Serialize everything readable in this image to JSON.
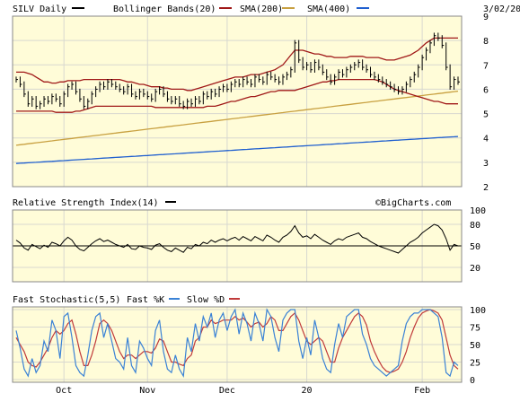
{
  "chart_data": {
    "type": "line",
    "ticker_label": "SILV Daily",
    "date": "3/02/20",
    "watermark": "©BigCharts.com",
    "colors": {
      "background": "#ffffff",
      "panel_bg": "#fffcd8",
      "frame": "#888888",
      "grid": "#d8d8d0",
      "price": "#000000",
      "bollinger": "#a01818",
      "sma200": "#c8a040",
      "sma400": "#1f5fcf",
      "rsi": "#000000",
      "fast_k": "#3a82d6",
      "slow_d": "#c03a3a"
    },
    "legend": [
      {
        "label": "SILV Daily",
        "color": "#000000"
      },
      {
        "label": "Bollinger Bands(20)",
        "color": "#a01818"
      },
      {
        "label": "SMA(200)",
        "color": "#c8a040"
      },
      {
        "label": "SMA(400)",
        "color": "#1f5fcf"
      }
    ],
    "x_labels": [
      "Oct",
      "Nov",
      "Dec",
      "20",
      "Feb"
    ],
    "x_label_positions": [
      12,
      33,
      53,
      73,
      102
    ],
    "price_panel": {
      "y_ticks": [
        "9",
        "8",
        "7",
        "6",
        "5",
        "4",
        "3",
        "2"
      ],
      "ylim": [
        2,
        9
      ],
      "price": [
        6.4,
        6.2,
        5.8,
        5.4,
        5.6,
        5.3,
        5.4,
        5.6,
        5.5,
        5.7,
        5.6,
        5.4,
        5.8,
        6.1,
        6.2,
        5.9,
        5.6,
        5.3,
        5.5,
        5.8,
        6.0,
        6.2,
        6.1,
        6.3,
        6.2,
        6.1,
        6.0,
        5.9,
        6.1,
        5.8,
        5.7,
        5.9,
        5.8,
        5.7,
        5.6,
        5.9,
        6.0,
        5.8,
        5.6,
        5.5,
        5.6,
        5.4,
        5.3,
        5.5,
        5.4,
        5.6,
        5.5,
        5.8,
        5.7,
        5.9,
        5.8,
        6.0,
        6.1,
        6.0,
        6.2,
        6.3,
        6.2,
        6.4,
        6.3,
        6.2,
        6.5,
        6.4,
        6.3,
        6.6,
        6.5,
        6.4,
        6.3,
        6.5,
        6.6,
        6.8,
        7.9,
        7.2,
        6.9,
        7.0,
        6.8,
        7.1,
        6.9,
        6.7,
        6.5,
        6.3,
        6.5,
        6.7,
        6.6,
        6.8,
        6.9,
        7.0,
        7.1,
        6.9,
        6.8,
        6.6,
        6.5,
        6.4,
        6.3,
        6.2,
        6.1,
        6.0,
        5.9,
        6.0,
        6.2,
        6.4,
        6.6,
        6.9,
        7.3,
        7.6,
        7.9,
        8.2,
        8.1,
        7.8,
        6.9,
        6.1,
        6.4,
        6.3
      ],
      "bollinger_upper": [
        6.7,
        6.7,
        6.7,
        6.65,
        6.6,
        6.5,
        6.4,
        6.3,
        6.3,
        6.25,
        6.25,
        6.3,
        6.3,
        6.35,
        6.35,
        6.35,
        6.35,
        6.4,
        6.4,
        6.4,
        6.4,
        6.4,
        6.4,
        6.4,
        6.4,
        6.4,
        6.4,
        6.35,
        6.3,
        6.3,
        6.25,
        6.2,
        6.2,
        6.15,
        6.1,
        6.1,
        6.1,
        6.05,
        6.05,
        6.0,
        6.0,
        6.0,
        6.0,
        5.95,
        5.95,
        6.0,
        6.05,
        6.1,
        6.15,
        6.2,
        6.25,
        6.3,
        6.35,
        6.4,
        6.45,
        6.5,
        6.5,
        6.5,
        6.55,
        6.6,
        6.6,
        6.6,
        6.65,
        6.7,
        6.75,
        6.8,
        6.9,
        7.0,
        7.2,
        7.4,
        7.6,
        7.6,
        7.6,
        7.55,
        7.5,
        7.45,
        7.45,
        7.4,
        7.35,
        7.35,
        7.3,
        7.3,
        7.3,
        7.3,
        7.35,
        7.35,
        7.35,
        7.35,
        7.3,
        7.3,
        7.3,
        7.3,
        7.25,
        7.2,
        7.2,
        7.2,
        7.25,
        7.3,
        7.35,
        7.4,
        7.5,
        7.6,
        7.75,
        7.9,
        8.0,
        8.1,
        8.1,
        8.1,
        8.1,
        8.1,
        8.1,
        8.1
      ],
      "bollinger_lower": [
        5.1,
        5.1,
        5.1,
        5.1,
        5.1,
        5.1,
        5.1,
        5.1,
        5.1,
        5.1,
        5.05,
        5.05,
        5.05,
        5.05,
        5.05,
        5.1,
        5.1,
        5.15,
        5.2,
        5.25,
        5.3,
        5.3,
        5.3,
        5.3,
        5.3,
        5.3,
        5.3,
        5.3,
        5.3,
        5.3,
        5.3,
        5.3,
        5.3,
        5.3,
        5.3,
        5.25,
        5.25,
        5.25,
        5.25,
        5.25,
        5.25,
        5.25,
        5.25,
        5.25,
        5.25,
        5.25,
        5.25,
        5.25,
        5.3,
        5.3,
        5.3,
        5.35,
        5.4,
        5.45,
        5.5,
        5.5,
        5.55,
        5.6,
        5.65,
        5.7,
        5.7,
        5.75,
        5.8,
        5.85,
        5.9,
        5.9,
        5.95,
        5.95,
        5.95,
        5.95,
        5.95,
        6.0,
        6.05,
        6.1,
        6.15,
        6.2,
        6.25,
        6.3,
        6.3,
        6.35,
        6.35,
        6.4,
        6.4,
        6.4,
        6.4,
        6.4,
        6.4,
        6.4,
        6.4,
        6.4,
        6.4,
        6.35,
        6.3,
        6.2,
        6.1,
        6.0,
        5.95,
        5.9,
        5.85,
        5.8,
        5.75,
        5.7,
        5.65,
        5.6,
        5.55,
        5.5,
        5.5,
        5.45,
        5.4,
        5.4,
        5.4,
        5.4
      ],
      "sma200": [
        3.7,
        3.72,
        3.74,
        3.76,
        3.78,
        3.8,
        3.82,
        3.84,
        3.86,
        3.88,
        3.9,
        3.92,
        3.94,
        3.96,
        3.98,
        4.0,
        4.02,
        4.04,
        4.06,
        4.08,
        4.1,
        4.12,
        4.14,
        4.16,
        4.18,
        4.2,
        4.22,
        4.24,
        4.26,
        4.28,
        4.3,
        4.32,
        4.34,
        4.36,
        4.38,
        4.4,
        4.42,
        4.44,
        4.46,
        4.48,
        4.5,
        4.52,
        4.54,
        4.56,
        4.58,
        4.6,
        4.62,
        4.64,
        4.66,
        4.68,
        4.7,
        4.72,
        4.74,
        4.76,
        4.78,
        4.8,
        4.82,
        4.84,
        4.86,
        4.88,
        4.9,
        4.92,
        4.94,
        4.96,
        4.98,
        5.0,
        5.02,
        5.04,
        5.06,
        5.08,
        5.1,
        5.12,
        5.14,
        5.16,
        5.18,
        5.2,
        5.22,
        5.24,
        5.26,
        5.28,
        5.3,
        5.32,
        5.34,
        5.36,
        5.38,
        5.4,
        5.42,
        5.44,
        5.46,
        5.48,
        5.5,
        5.52,
        5.54,
        5.56,
        5.58,
        5.6,
        5.62,
        5.64,
        5.66,
        5.68,
        5.7,
        5.72,
        5.74,
        5.76,
        5.78,
        5.8,
        5.82,
        5.84,
        5.86,
        5.88,
        5.9,
        5.92
      ],
      "sma400": [
        2.95,
        2.96,
        2.97,
        2.98,
        2.99,
        3.0,
        3.01,
        3.02,
        3.03,
        3.04,
        3.05,
        3.06,
        3.07,
        3.08,
        3.09,
        3.1,
        3.11,
        3.12,
        3.13,
        3.14,
        3.15,
        3.16,
        3.17,
        3.18,
        3.19,
        3.2,
        3.21,
        3.22,
        3.23,
        3.24,
        3.25,
        3.26,
        3.27,
        3.28,
        3.29,
        3.3,
        3.31,
        3.32,
        3.33,
        3.34,
        3.35,
        3.36,
        3.37,
        3.38,
        3.39,
        3.4,
        3.41,
        3.42,
        3.43,
        3.44,
        3.45,
        3.46,
        3.47,
        3.48,
        3.49,
        3.5,
        3.51,
        3.52,
        3.53,
        3.54,
        3.55,
        3.56,
        3.57,
        3.58,
        3.59,
        3.6,
        3.61,
        3.62,
        3.63,
        3.64,
        3.65,
        3.66,
        3.67,
        3.68,
        3.69,
        3.7,
        3.71,
        3.72,
        3.73,
        3.74,
        3.75,
        3.76,
        3.77,
        3.78,
        3.79,
        3.8,
        3.81,
        3.82,
        3.83,
        3.84,
        3.85,
        3.86,
        3.87,
        3.88,
        3.89,
        3.9,
        3.91,
        3.92,
        3.93,
        3.94,
        3.95,
        3.96,
        3.97,
        3.98,
        3.99,
        4.0,
        4.01,
        4.02,
        4.03,
        4.04,
        4.05,
        4.06
      ]
    },
    "rsi_panel": {
      "title": "Relative Strength Index(14)",
      "y_ticks": [
        "100",
        "80",
        "50",
        "20"
      ],
      "ylim": [
        0,
        100
      ],
      "reference_line": 50,
      "values": [
        58,
        54,
        47,
        44,
        52,
        49,
        46,
        51,
        48,
        55,
        53,
        50,
        57,
        62,
        58,
        50,
        45,
        43,
        48,
        53,
        57,
        60,
        56,
        58,
        55,
        52,
        50,
        48,
        52,
        46,
        45,
        50,
        48,
        47,
        45,
        51,
        53,
        48,
        44,
        42,
        47,
        44,
        41,
        48,
        46,
        52,
        50,
        55,
        53,
        58,
        55,
        58,
        60,
        57,
        60,
        62,
        58,
        63,
        60,
        57,
        63,
        60,
        57,
        65,
        62,
        58,
        55,
        62,
        65,
        70,
        78,
        68,
        62,
        64,
        60,
        66,
        62,
        58,
        55,
        52,
        57,
        60,
        58,
        62,
        64,
        66,
        68,
        62,
        60,
        56,
        53,
        50,
        48,
        46,
        44,
        42,
        40,
        45,
        50,
        55,
        58,
        62,
        68,
        72,
        76,
        80,
        78,
        72,
        60,
        44,
        52,
        50
      ]
    },
    "stoch_panel": {
      "title": "Fast Stochastic(5,5)",
      "fast_label": "Fast %K",
      "slow_label": "Slow %D",
      "y_ticks": [
        "100",
        "75",
        "50",
        "25",
        "0"
      ],
      "ylim": [
        0,
        100
      ],
      "fast_k": [
        70,
        45,
        15,
        5,
        30,
        10,
        20,
        55,
        40,
        85,
        70,
        30,
        90,
        95,
        60,
        20,
        10,
        5,
        35,
        70,
        90,
        95,
        60,
        80,
        55,
        30,
        25,
        15,
        60,
        20,
        10,
        55,
        45,
        30,
        20,
        70,
        85,
        40,
        15,
        10,
        35,
        15,
        5,
        60,
        40,
        80,
        55,
        90,
        75,
        95,
        60,
        85,
        95,
        70,
        90,
        100,
        65,
        95,
        80,
        55,
        95,
        80,
        55,
        100,
        90,
        60,
        40,
        85,
        95,
        100,
        100,
        55,
        30,
        60,
        35,
        85,
        60,
        30,
        15,
        10,
        50,
        80,
        60,
        90,
        95,
        100,
        100,
        65,
        50,
        30,
        20,
        15,
        10,
        5,
        10,
        15,
        20,
        55,
        80,
        90,
        95,
        95,
        100,
        100,
        100,
        95,
        90,
        60,
        10,
        5,
        25,
        20
      ],
      "slow_d": [
        60,
        50,
        40,
        25,
        20,
        18,
        25,
        35,
        45,
        60,
        70,
        65,
        70,
        80,
        85,
        65,
        40,
        20,
        20,
        35,
        55,
        80,
        85,
        80,
        70,
        55,
        40,
        30,
        35,
        35,
        30,
        35,
        40,
        40,
        38,
        45,
        58,
        55,
        40,
        25,
        25,
        22,
        20,
        30,
        35,
        55,
        60,
        75,
        75,
        85,
        80,
        82,
        85,
        85,
        85,
        90,
        85,
        88,
        82,
        75,
        80,
        82,
        75,
        80,
        90,
        85,
        70,
        70,
        80,
        90,
        95,
        85,
        70,
        55,
        50,
        55,
        60,
        55,
        40,
        25,
        25,
        45,
        60,
        70,
        80,
        90,
        95,
        90,
        78,
        55,
        40,
        28,
        18,
        12,
        10,
        12,
        15,
        25,
        40,
        60,
        75,
        88,
        95,
        98,
        100,
        98,
        95,
        85,
        60,
        35,
        20,
        15
      ]
    }
  }
}
